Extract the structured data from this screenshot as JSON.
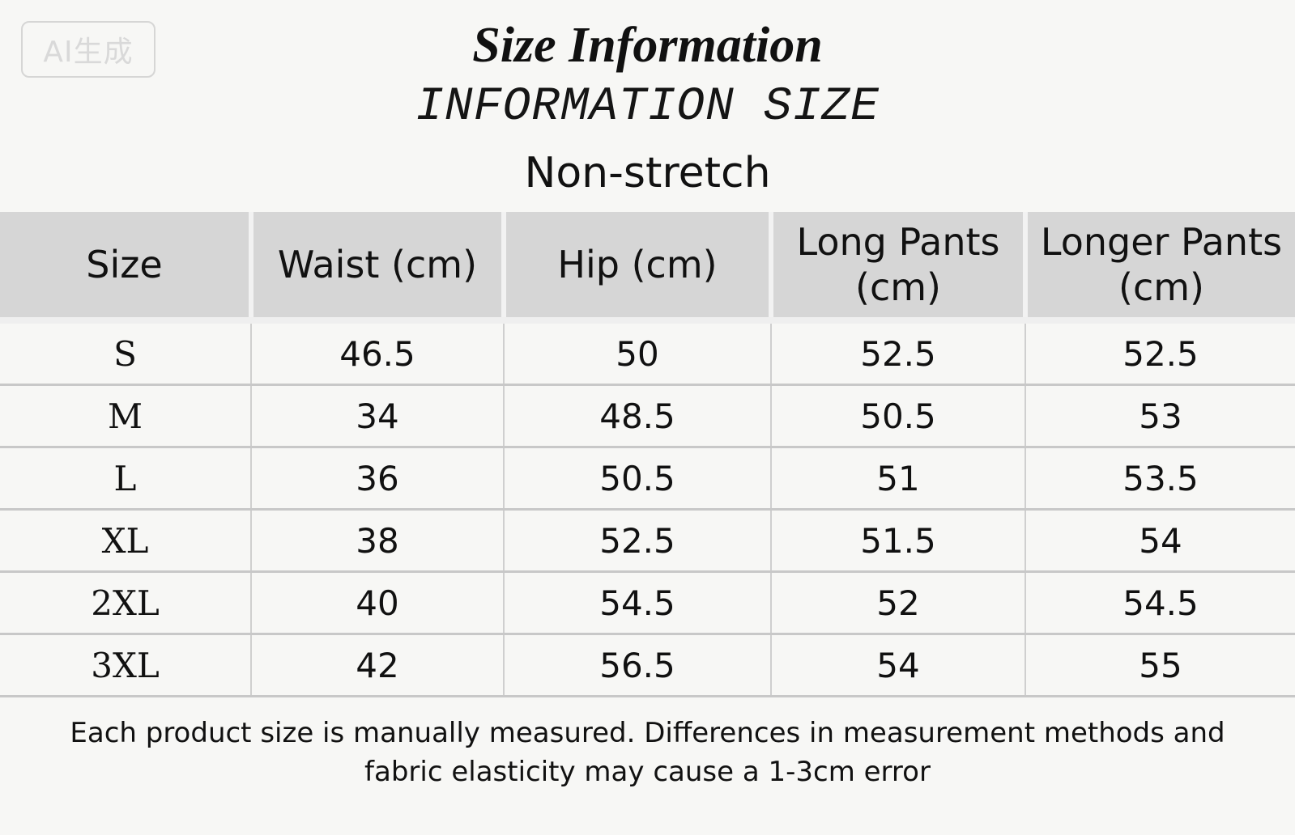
{
  "watermark": "AI生成",
  "header": {
    "title": "Size Information",
    "subtitle": "INFORMATION SIZE",
    "fabric": "Non-stretch"
  },
  "table": {
    "columns": [
      "Size",
      "Waist (cm)",
      "Hip (cm)",
      "Long Pants (cm)",
      "Longer Pants (cm)"
    ],
    "rows": [
      [
        "S",
        "46.5",
        "50",
        "52.5",
        "52.5"
      ],
      [
        "M",
        "34",
        "48.5",
        "50.5",
        "53"
      ],
      [
        "L",
        "36",
        "50.5",
        "51",
        "53.5"
      ],
      [
        "XL",
        "38",
        "52.5",
        "51.5",
        "54"
      ],
      [
        "2XL",
        "40",
        "54.5",
        "52",
        "54.5"
      ],
      [
        "3XL",
        "42",
        "56.5",
        "54",
        "55"
      ]
    ]
  },
  "note": {
    "line1": "Each product size is manually measured. Differences in measurement methods and",
    "line2": "fabric elasticity may cause a 1-3cm error"
  }
}
